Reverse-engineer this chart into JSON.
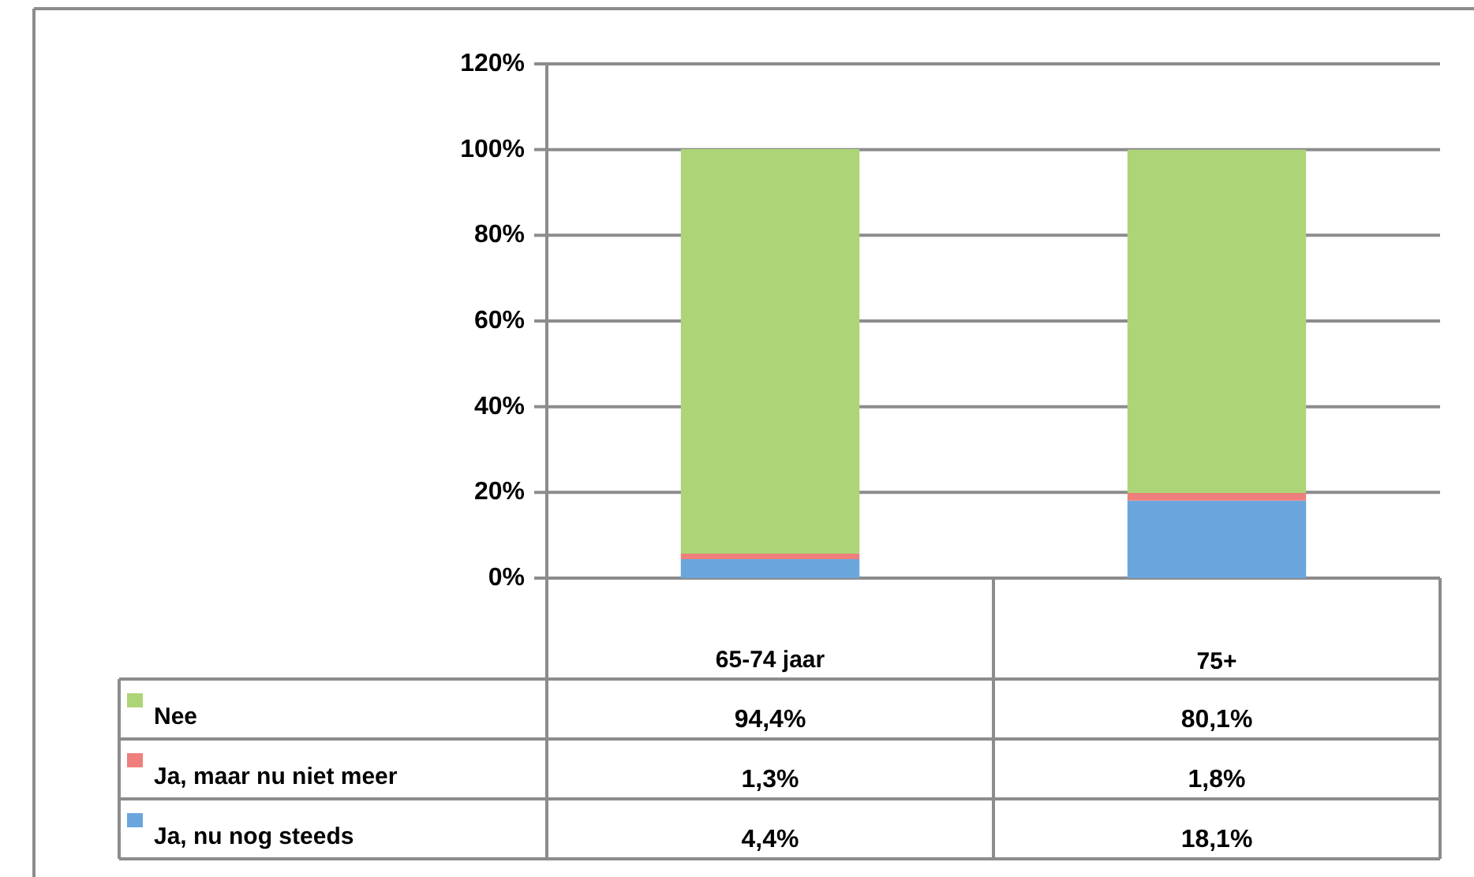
{
  "chart_data": {
    "type": "bar",
    "stacked": true,
    "categories": [
      "65-74 jaar",
      "75+"
    ],
    "series": [
      {
        "name": "Ja, nu nog steeds",
        "color": "#6aa6dc",
        "values": [
          4.4,
          18.1
        ],
        "value_labels": [
          "4,4%",
          "18,1%"
        ]
      },
      {
        "name": "Ja, maar nu niet meer",
        "color": "#ee7f7c",
        "values": [
          1.3,
          1.8
        ],
        "value_labels": [
          "1,3%",
          "1,8%"
        ]
      },
      {
        "name": "Nee",
        "color": "#aed478",
        "values": [
          94.4,
          80.1
        ],
        "value_labels": [
          "94,4%",
          "80,1%"
        ]
      }
    ],
    "ylim": [
      0,
      120
    ],
    "yticks": [
      {
        "value": 0,
        "label": "0%"
      },
      {
        "value": 20,
        "label": "20%"
      },
      {
        "value": 40,
        "label": "40%"
      },
      {
        "value": 60,
        "label": "60%"
      },
      {
        "value": 80,
        "label": "80%"
      },
      {
        "value": 100,
        "label": "100%"
      },
      {
        "value": 120,
        "label": "120%"
      }
    ],
    "grid": "y",
    "legend": "bottom"
  }
}
